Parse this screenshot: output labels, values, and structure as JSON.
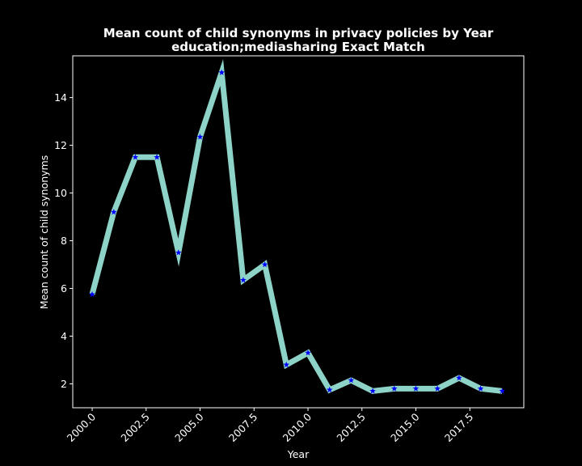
{
  "chart_data": {
    "type": "line",
    "title": "Mean count of child synonyms in privacy policies by Year",
    "subtitle": "education;mediasharing Exact Match",
    "xlabel": "Year",
    "ylabel": "Mean count of child synonyms",
    "xlim": [
      1999.1,
      2020.0
    ],
    "ylim": [
      1.0,
      15.75
    ],
    "xticks": [
      2000.0,
      2002.5,
      2005.0,
      2007.5,
      2010.0,
      2012.5,
      2015.0,
      2017.5
    ],
    "xtick_labels": [
      "2000.0",
      "2002.5",
      "2005.0",
      "2007.5",
      "2010.0",
      "2012.5",
      "2015.0",
      "2017.5"
    ],
    "yticks": [
      2,
      4,
      6,
      8,
      10,
      12,
      14
    ],
    "ytick_labels": [
      "2",
      "4",
      "6",
      "8",
      "10",
      "12",
      "14"
    ],
    "grid": false,
    "background": "#000000",
    "line_color": "#8dd3c7",
    "marker_color": "#0000ff",
    "marker": "star",
    "series": [
      {
        "x": [
          2000,
          2001,
          2002,
          2003,
          2004,
          2005,
          2006,
          2007,
          2008,
          2009,
          2010,
          2011,
          2012,
          2013,
          2014,
          2015,
          2016,
          2017,
          2018,
          2019
        ],
        "values": [
          5.75,
          9.2,
          11.5,
          11.5,
          7.5,
          12.35,
          15.05,
          6.35,
          7.0,
          2.8,
          3.3,
          1.75,
          2.15,
          1.7,
          1.8,
          1.8,
          1.8,
          2.25,
          1.8,
          1.7
        ]
      }
    ]
  }
}
